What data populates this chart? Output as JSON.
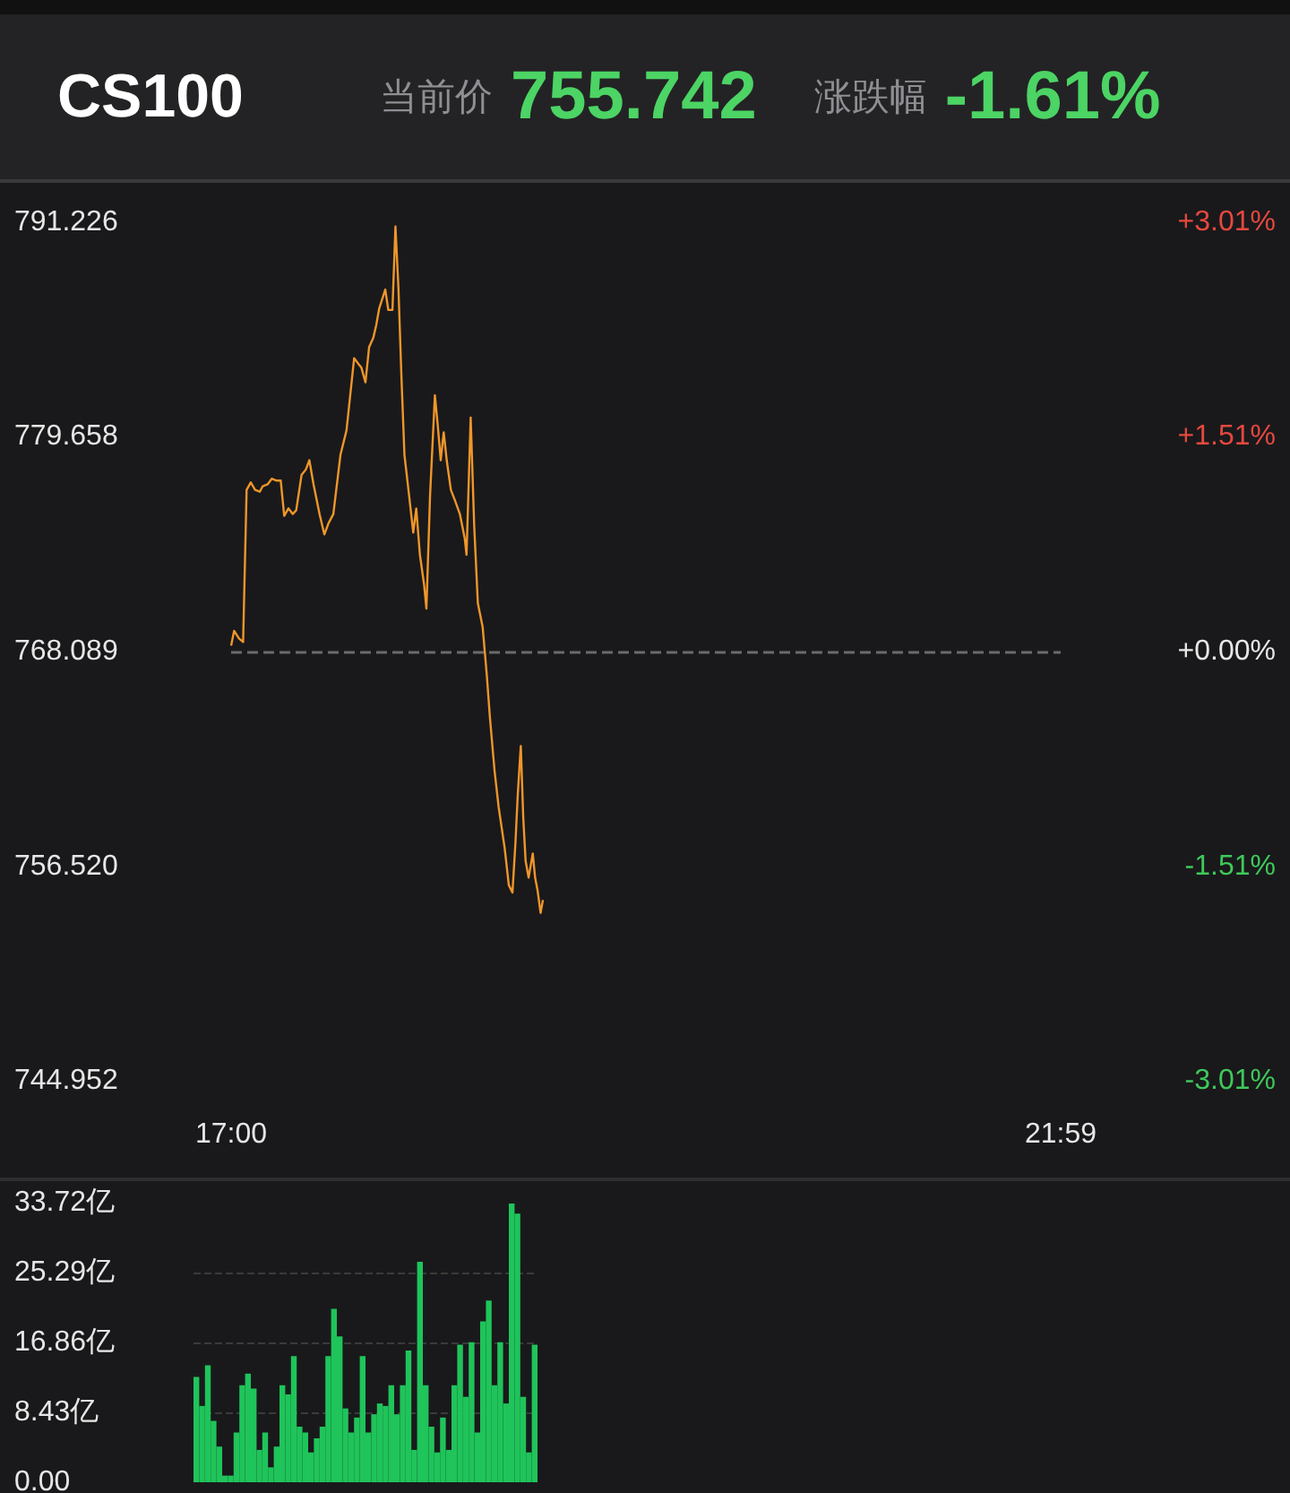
{
  "chart_data": [
    {
      "type": "line",
      "title": "CS100",
      "annotations": [
        "当前价",
        "755.742",
        "涨跌幅",
        "-1.61%"
      ],
      "color": "#f0962a",
      "marker": "none",
      "x": [
        17.0,
        17.018,
        17.047,
        17.072,
        17.093,
        17.118,
        17.144,
        17.172,
        17.19,
        17.219,
        17.244,
        17.273,
        17.298,
        17.319,
        17.344,
        17.37,
        17.391,
        17.423,
        17.449,
        17.47,
        17.495,
        17.531,
        17.56,
        17.585,
        17.614,
        17.657,
        17.693,
        17.739,
        17.764,
        17.782,
        17.807,
        17.829,
        17.854,
        17.872,
        17.89,
        17.926,
        17.944,
        17.969,
        17.987,
        18.005,
        18.023,
        18.041,
        18.069,
        18.094,
        18.112,
        18.134,
        18.159,
        18.173,
        18.195,
        18.224,
        18.241,
        18.259,
        18.277,
        18.295,
        18.32,
        18.346,
        18.374,
        18.403,
        18.414,
        18.439,
        18.46,
        18.482,
        18.511,
        18.536,
        18.554,
        18.582,
        18.607,
        18.643,
        18.668,
        18.69,
        18.708,
        18.722,
        18.74,
        18.755,
        18.769,
        18.787,
        18.812,
        18.826,
        18.841,
        18.859,
        18.873
      ],
      "values": [
        768.4,
        769.2,
        768.8,
        768.6,
        776.8,
        777.2,
        776.8,
        776.7,
        777.0,
        777.1,
        777.4,
        777.3,
        777.3,
        775.4,
        775.8,
        775.5,
        775.7,
        777.6,
        777.9,
        778.4,
        777.1,
        775.5,
        774.4,
        775.0,
        775.5,
        778.7,
        780.0,
        783.9,
        783.6,
        783.4,
        782.6,
        784.5,
        785.0,
        785.7,
        786.6,
        787.6,
        786.5,
        786.5,
        791.0,
        787.7,
        782.9,
        778.7,
        776.5,
        774.5,
        775.8,
        773.3,
        771.7,
        770.4,
        776.5,
        781.9,
        780.3,
        778.4,
        779.9,
        778.4,
        776.8,
        776.2,
        775.5,
        774.2,
        773.3,
        780.7,
        774.9,
        770.7,
        769.4,
        766.8,
        764.6,
        761.7,
        759.7,
        757.5,
        755.5,
        755.1,
        757.8,
        760.4,
        763.0,
        759.1,
        756.8,
        755.9,
        757.2,
        755.9,
        755.2,
        754.0,
        754.7
      ],
      "xlim": [
        17,
        21.983
      ],
      "xticks": [
        {
          "value": 17,
          "label": "17:00"
        },
        {
          "value": 21.983,
          "label": "21:59"
        }
      ],
      "ylim": [
        744.952,
        791.226
      ],
      "yticks": [
        744.952,
        {
          "value": 756.52,
          "label": "756.520"
        },
        768.089,
        779.658,
        791.226
      ],
      "y2lim": [
        -3.01,
        3.01
      ],
      "y2ticks": [
        {
          "value": -3.01,
          "label": "-3.01%"
        },
        {
          "value": -1.51,
          "label": "-1.51%"
        },
        {
          "value": 0,
          "label": "+0.00%"
        },
        {
          "value": 1.51,
          "label": "+1.51%"
        },
        {
          "value": 3.01,
          "label": "+3.01%"
        }
      ],
      "ref_lines": [
        {
          "axis": "y",
          "value": 768.089,
          "color": "#6b6b6b",
          "line_style": "dashed"
        }
      ]
    },
    {
      "type": "bar",
      "color": "#1fc45a",
      "tick_labels": "y",
      "grid": "y",
      "categories": [
        null,
        null,
        null,
        null,
        null,
        null,
        null,
        null,
        null,
        null,
        null,
        null,
        null,
        null,
        null,
        null,
        null,
        null,
        null,
        null,
        null,
        null,
        null,
        null,
        null,
        null,
        null,
        null,
        null,
        null,
        null,
        null,
        null,
        null,
        null,
        null,
        null,
        null,
        null,
        null,
        null,
        null,
        null,
        null,
        null,
        null,
        null,
        null,
        null,
        null,
        null,
        null,
        null,
        null,
        null,
        null,
        null,
        null,
        null,
        null
      ],
      "values": [
        12.7,
        9.2,
        14.1,
        7.4,
        4.3,
        0.8,
        0.8,
        6.0,
        11.7,
        13.1,
        11.3,
        3.9,
        6.0,
        1.8,
        4.3,
        11.7,
        10.6,
        15.2,
        6.7,
        6.0,
        3.6,
        5.3,
        6.7,
        15.2,
        20.9,
        17.6,
        8.9,
        6.0,
        7.8,
        15.2,
        6.0,
        8.2,
        9.5,
        9.2,
        11.7,
        8.2,
        11.7,
        15.9,
        3.9,
        26.6,
        11.7,
        6.7,
        3.6,
        7.8,
        3.9,
        11.7,
        16.6,
        10.3,
        16.9,
        6.0,
        19.4,
        21.9,
        11.7,
        16.9,
        9.5,
        33.6,
        32.4,
        10.3,
        3.6,
        16.6
      ],
      "ylim": [
        0,
        33.72
      ],
      "yticks": [
        {
          "value": 0,
          "label": "0.00"
        },
        {
          "value": 8.43,
          "label": "8.43亿"
        },
        {
          "value": 16.86,
          "label": "16.86亿"
        },
        {
          "value": 25.29,
          "label": "25.29亿"
        },
        {
          "value": 33.72,
          "label": "33.72亿"
        }
      ]
    }
  ]
}
